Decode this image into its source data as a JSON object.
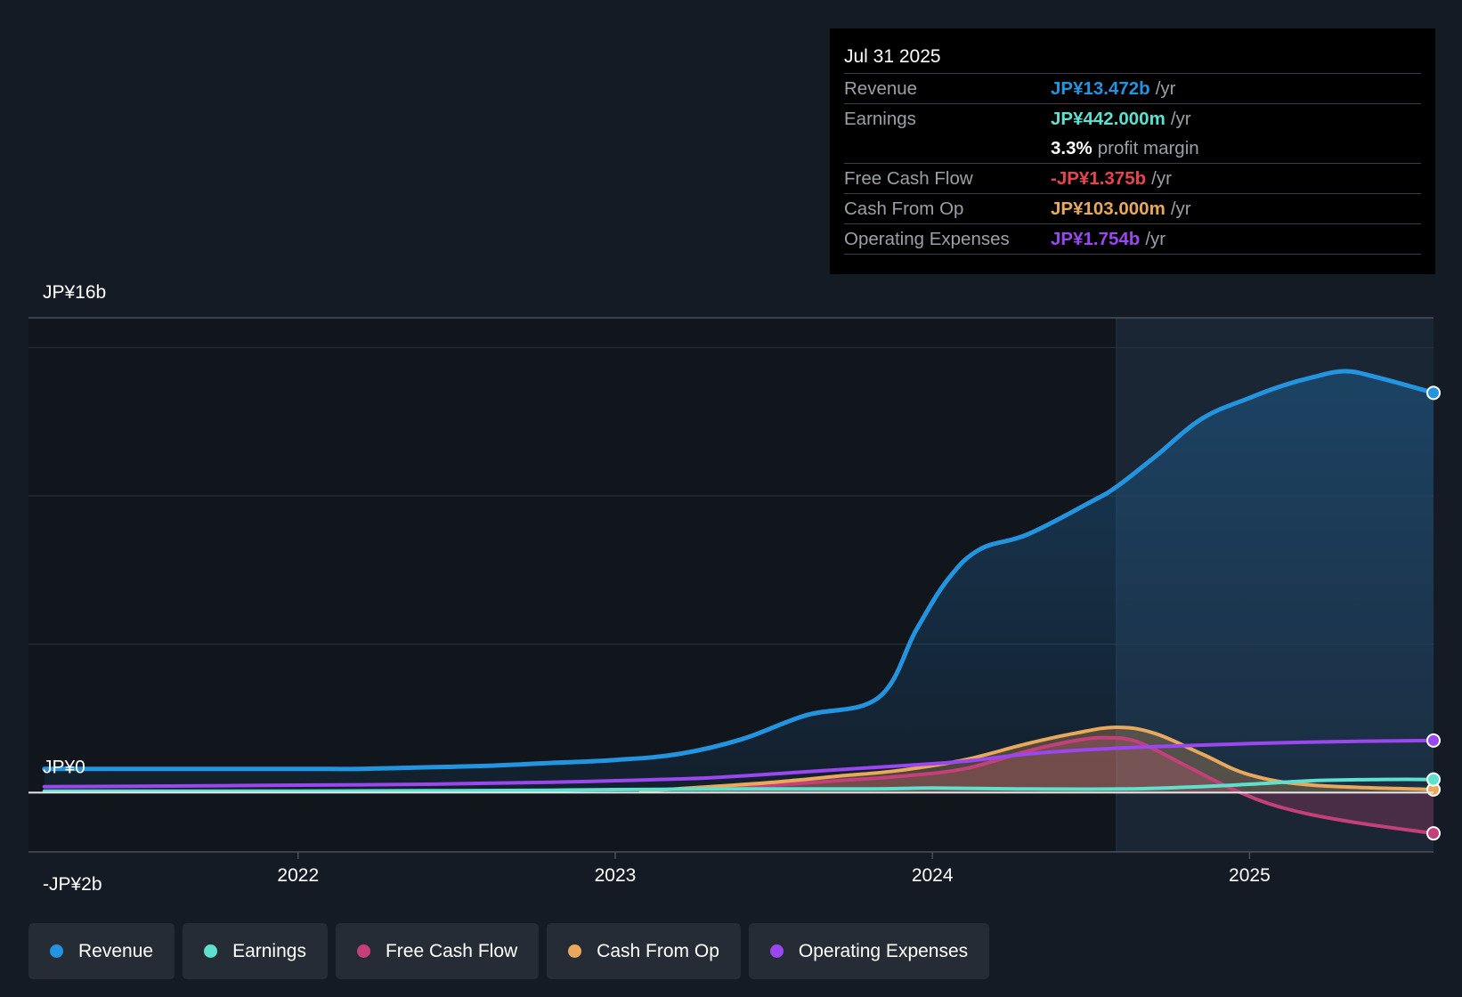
{
  "chart_data": {
    "type": "area",
    "y_unit": "JP¥b",
    "ylim": [
      -2,
      16
    ],
    "x_range": [
      2021.15,
      2025.58
    ],
    "x_ticks": [
      "2022",
      "2023",
      "2024",
      "2025"
    ],
    "x_tick_values": [
      2022,
      2023,
      2024,
      2025
    ],
    "y_tick_labels": [
      {
        "label": "JP¥16b",
        "value": 16
      },
      {
        "label": "JP¥0",
        "value": 0
      },
      {
        "label": "-JP¥2b",
        "value": -2
      }
    ],
    "gridlines": [
      15,
      10,
      5
    ],
    "highlight_start": 2024.58,
    "series": [
      {
        "name": "Revenue",
        "color": "#2394df",
        "fill": true,
        "end_marker": true,
        "points": [
          [
            2021.2,
            0.8
          ],
          [
            2021.6,
            0.8
          ],
          [
            2022.0,
            0.8
          ],
          [
            2022.2,
            0.8
          ],
          [
            2022.4,
            0.85
          ],
          [
            2022.6,
            0.9
          ],
          [
            2022.8,
            1.0
          ],
          [
            2023.0,
            1.1
          ],
          [
            2023.2,
            1.3
          ],
          [
            2023.4,
            1.8
          ],
          [
            2023.6,
            2.6
          ],
          [
            2023.83,
            3.2
          ],
          [
            2023.95,
            5.5
          ],
          [
            2024.05,
            7.2
          ],
          [
            2024.15,
            8.2
          ],
          [
            2024.3,
            8.7
          ],
          [
            2024.5,
            9.8
          ],
          [
            2024.58,
            10.3
          ],
          [
            2024.7,
            11.3
          ],
          [
            2024.85,
            12.6
          ],
          [
            2025.0,
            13.3
          ],
          [
            2025.1,
            13.7
          ],
          [
            2025.2,
            14.0
          ],
          [
            2025.3,
            14.2
          ],
          [
            2025.4,
            14.0
          ],
          [
            2025.58,
            13.47
          ]
        ]
      },
      {
        "name": "Free Cash Flow",
        "color": "#c4407a",
        "fill": true,
        "end_marker": true,
        "points": [
          [
            2023.3,
            0.15
          ],
          [
            2023.5,
            0.25
          ],
          [
            2023.7,
            0.4
          ],
          [
            2023.9,
            0.55
          ],
          [
            2024.1,
            0.8
          ],
          [
            2024.3,
            1.4
          ],
          [
            2024.45,
            1.75
          ],
          [
            2024.55,
            1.85
          ],
          [
            2024.65,
            1.7
          ],
          [
            2024.8,
            0.9
          ],
          [
            2024.95,
            0.1
          ],
          [
            2025.1,
            -0.5
          ],
          [
            2025.3,
            -0.95
          ],
          [
            2025.58,
            -1.375
          ]
        ]
      },
      {
        "name": "Cash From Op",
        "color": "#e8a95c",
        "fill": true,
        "end_marker": true,
        "points": [
          [
            2023.08,
            0.05
          ],
          [
            2023.3,
            0.2
          ],
          [
            2023.5,
            0.35
          ],
          [
            2023.7,
            0.55
          ],
          [
            2023.9,
            0.75
          ],
          [
            2024.1,
            1.1
          ],
          [
            2024.3,
            1.65
          ],
          [
            2024.45,
            2.0
          ],
          [
            2024.58,
            2.2
          ],
          [
            2024.7,
            2.0
          ],
          [
            2024.85,
            1.3
          ],
          [
            2025.0,
            0.6
          ],
          [
            2025.2,
            0.25
          ],
          [
            2025.58,
            0.103
          ]
        ]
      },
      {
        "name": "Operating Expenses",
        "color": "#9b47ef",
        "fill": false,
        "end_marker": true,
        "points": [
          [
            2021.2,
            0.2
          ],
          [
            2021.6,
            0.22
          ],
          [
            2022.0,
            0.25
          ],
          [
            2022.4,
            0.28
          ],
          [
            2022.8,
            0.35
          ],
          [
            2023.0,
            0.4
          ],
          [
            2023.3,
            0.5
          ],
          [
            2023.6,
            0.7
          ],
          [
            2023.9,
            0.9
          ],
          [
            2024.1,
            1.05
          ],
          [
            2024.3,
            1.3
          ],
          [
            2024.5,
            1.45
          ],
          [
            2024.7,
            1.55
          ],
          [
            2025.0,
            1.65
          ],
          [
            2025.3,
            1.72
          ],
          [
            2025.58,
            1.754
          ]
        ]
      },
      {
        "name": "Earnings",
        "color": "#5ee0cf",
        "fill": false,
        "end_marker": true,
        "points": [
          [
            2021.2,
            0.05
          ],
          [
            2021.6,
            0.05
          ],
          [
            2022.0,
            0.05
          ],
          [
            2022.4,
            0.06
          ],
          [
            2022.8,
            0.08
          ],
          [
            2023.0,
            0.1
          ],
          [
            2023.4,
            0.12
          ],
          [
            2023.8,
            0.12
          ],
          [
            2024.0,
            0.15
          ],
          [
            2024.3,
            0.12
          ],
          [
            2024.6,
            0.12
          ],
          [
            2024.8,
            0.18
          ],
          [
            2025.0,
            0.28
          ],
          [
            2025.2,
            0.4
          ],
          [
            2025.4,
            0.44
          ],
          [
            2025.58,
            0.442
          ]
        ]
      }
    ]
  },
  "tooltip": {
    "date": "Jul 31 2025",
    "rows": [
      {
        "label": "Revenue",
        "value": "JP¥13.472b",
        "unit": "/yr",
        "color": "#2394df"
      },
      {
        "label": "Earnings",
        "value": "JP¥442.000m",
        "unit": "/yr",
        "color": "#5ee0cf"
      },
      {
        "label": "",
        "value": "3.3%",
        "unit": "profit margin",
        "color": "#ffffff"
      },
      {
        "label": "Free Cash Flow",
        "value": "-JP¥1.375b",
        "unit": "/yr",
        "color": "#e84450"
      },
      {
        "label": "Cash From Op",
        "value": "JP¥103.000m",
        "unit": "/yr",
        "color": "#e8a95c"
      },
      {
        "label": "Operating Expenses",
        "value": "JP¥1.754b",
        "unit": "/yr",
        "color": "#9b47ef"
      }
    ]
  },
  "legend": [
    {
      "label": "Revenue",
      "color": "#2394df"
    },
    {
      "label": "Earnings",
      "color": "#5ee0cf"
    },
    {
      "label": "Free Cash Flow",
      "color": "#c4407a"
    },
    {
      "label": "Cash From Op",
      "color": "#e8a95c"
    },
    {
      "label": "Operating Expenses",
      "color": "#9b47ef"
    }
  ]
}
